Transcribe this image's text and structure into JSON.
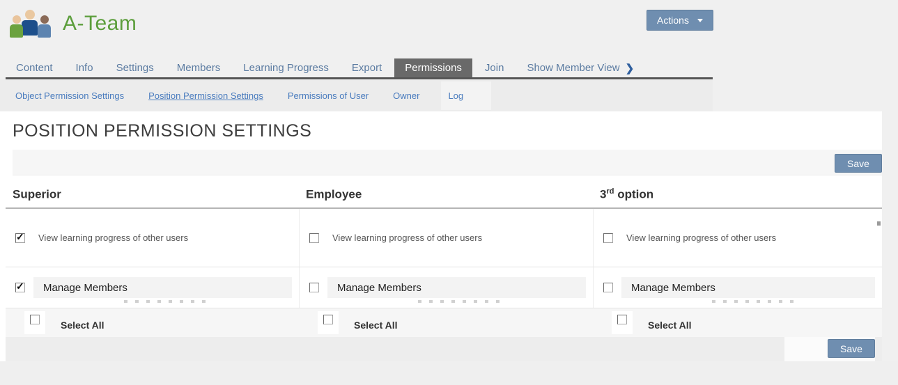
{
  "app": {
    "name": "A-Team"
  },
  "header": {
    "actions_label": "Actions"
  },
  "colors": {
    "accent_button": "#6f8eb0",
    "brand_green": "#5c9e3c",
    "active_tab_bg": "#696969",
    "link_blue": "#4a7cbe",
    "logo_green": "#6ba23f",
    "logo_navy": "#1d4f8b",
    "logo_steel_blue": "#5d84b0"
  },
  "tabs": {
    "items": [
      {
        "label": "Content",
        "active": false
      },
      {
        "label": "Info",
        "active": false
      },
      {
        "label": "Settings",
        "active": false
      },
      {
        "label": "Members",
        "active": false
      },
      {
        "label": "Learning Progress",
        "active": false
      },
      {
        "label": "Export",
        "active": false
      },
      {
        "label": "Permissions",
        "active": true
      },
      {
        "label": "Join",
        "active": false
      },
      {
        "label": "Show Member View",
        "active": false,
        "icon": "chevron-right",
        "icon_glyph": "❯"
      }
    ]
  },
  "subnav": {
    "items": [
      {
        "label": "Object Permission Settings",
        "active": false
      },
      {
        "label": "Position Permission Settings",
        "active": true
      },
      {
        "label": "Permissions of User",
        "active": false
      },
      {
        "label": "Owner",
        "active": false
      },
      {
        "label": "Log",
        "active": false
      }
    ]
  },
  "page": {
    "title": "POSITION PERMISSION SETTINGS"
  },
  "toolbar": {
    "save_label": "Save"
  },
  "table": {
    "columns": [
      {
        "title": "Superior",
        "title_sup": "",
        "title_rest": ""
      },
      {
        "title": "Employee",
        "title_sup": "",
        "title_rest": ""
      },
      {
        "title": "3",
        "title_sup": "rd",
        "title_rest": " option"
      }
    ],
    "rows": [
      {
        "label": "View learning progress of other users",
        "checked": [
          true,
          false,
          false
        ]
      },
      {
        "label": "Manage Members",
        "boxed": true,
        "checked": [
          true,
          false,
          false
        ]
      }
    ],
    "select_all": {
      "label": "Select All",
      "checked": [
        false,
        false,
        false
      ]
    }
  },
  "footer_bar": {
    "save_label": "Save"
  }
}
